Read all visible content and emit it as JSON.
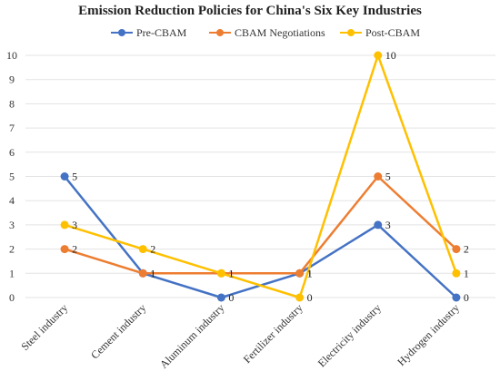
{
  "chart_data": {
    "type": "line",
    "title": "Emission Reduction Policies for China's Six Key Industries",
    "categories": [
      "Steel industry",
      "Cement industry",
      "Aluminum industry",
      "Fertilizer industry",
      "Electricity industry",
      "Hydrogen industry"
    ],
    "series": [
      {
        "name": "Pre-CBAM",
        "color": "#4472C4",
        "values": [
          5,
          1,
          0,
          1,
          3,
          0
        ]
      },
      {
        "name": "CBAM Negotiations",
        "color": "#ED7D31",
        "values": [
          2,
          1,
          1,
          1,
          5,
          2
        ]
      },
      {
        "name": "Post-CBAM",
        "color": "#FFC000",
        "values": [
          3,
          2,
          1,
          0,
          10,
          1
        ]
      }
    ],
    "xlabel": "",
    "ylabel": "",
    "ylim": [
      0,
      10
    ],
    "yticks": [
      0,
      1,
      2,
      3,
      4,
      5,
      6,
      7,
      8,
      9,
      10
    ],
    "grid": true,
    "legend_position": "top"
  }
}
